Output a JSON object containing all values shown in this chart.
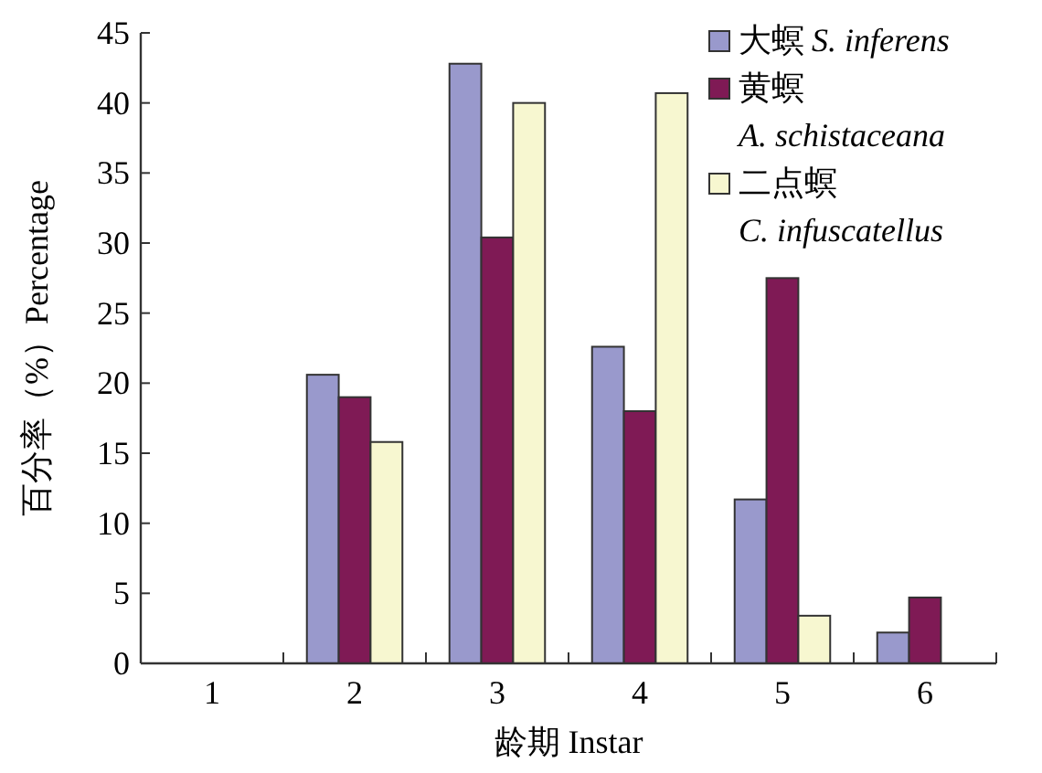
{
  "chart_data": {
    "type": "bar",
    "xlabel": "龄期 Instar",
    "ylabel": "百分率（%）Percentage",
    "categories": [
      "1",
      "2",
      "3",
      "4",
      "5",
      "6"
    ],
    "series": [
      {
        "name": "大螟 S. inferens",
        "color": "#9999cc",
        "values": [
          0,
          20.6,
          42.8,
          22.6,
          11.7,
          2.2
        ]
      },
      {
        "name": "黄螟 A. schistaceana",
        "color": "#7f1a55",
        "values": [
          0,
          19.0,
          30.4,
          18.0,
          27.5,
          4.7
        ]
      },
      {
        "name": "二点螟 C. infuscatellus",
        "color": "#f7f7d0",
        "values": [
          0,
          15.8,
          40.0,
          40.7,
          3.4,
          0
        ]
      }
    ],
    "ylim": [
      0,
      45
    ],
    "yticks": [
      0,
      5,
      10,
      15,
      20,
      25,
      30,
      35,
      40,
      45
    ],
    "legend": "top right",
    "grid": false
  }
}
